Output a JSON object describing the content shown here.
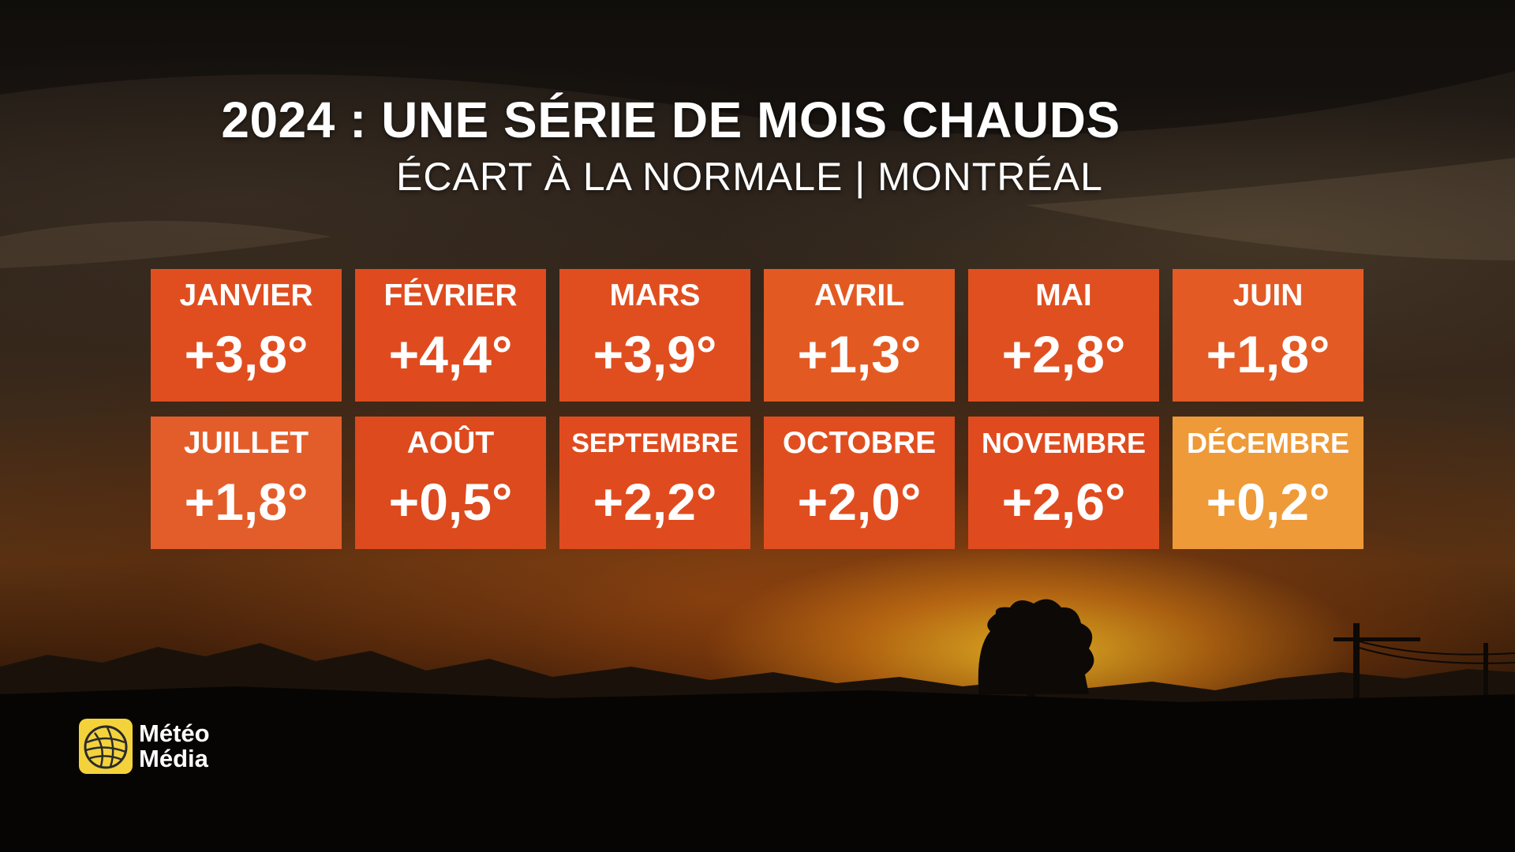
{
  "title": "2024 : UNE SÉRIE DE MOIS CHAUDS",
  "subtitle": "ÉCART À LA NORMALE | MONTRÉAL",
  "months": [
    {
      "label": "JANVIER",
      "value": "+3,8°",
      "color": "#e04e1f"
    },
    {
      "label": "FÉVRIER",
      "value": "+4,4°",
      "color": "#df4b1e"
    },
    {
      "label": "MARS",
      "value": "+3,9°",
      "color": "#e04e1f"
    },
    {
      "label": "AVRIL",
      "value": "+1,3°",
      "color": "#e25a22"
    },
    {
      "label": "MAI",
      "value": "+2,8°",
      "color": "#e04f20"
    },
    {
      "label": "JUIN",
      "value": "+1,8°",
      "color": "#e35a24"
    },
    {
      "label": "JUILLET",
      "value": "+1,8°",
      "color": "#e35d2a"
    },
    {
      "label": "AOÛT",
      "value": "+0,5°",
      "color": "#dc4a1e"
    },
    {
      "label": "SEPTEMBRE",
      "value": "+2,2°",
      "color": "#df4b1e"
    },
    {
      "label": "OCTOBRE",
      "value": "+2,0°",
      "color": "#e04e20"
    },
    {
      "label": "NOVEMBRE",
      "value": "+2,6°",
      "color": "#df4b1e"
    },
    {
      "label": "DÉCEMBRE",
      "value": "+0,2°",
      "color": "#ee9a38"
    }
  ],
  "logo": {
    "line1": "Météo",
    "line2": "Média",
    "icon": "globe-icon",
    "color": "#f4d23c"
  }
}
